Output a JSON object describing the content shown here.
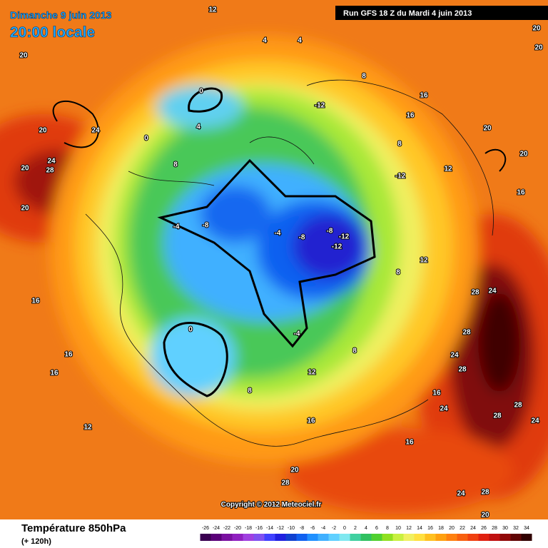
{
  "header": {
    "date": "Dimanche 9 juin 2013",
    "time": "20:00 locale",
    "run": "Run GFS 18 Z du Mardi 4 juin 2013"
  },
  "copyright": "Copyright © 2012 Meteociel.fr",
  "footer": {
    "title": "Température 850hPa",
    "subtitle": "(+ 120h)"
  },
  "scale": {
    "labels": [
      -26,
      -24,
      -22,
      -20,
      -18,
      -16,
      -14,
      -12,
      -10,
      -8,
      -6,
      -4,
      -2,
      0,
      2,
      4,
      6,
      8,
      10,
      12,
      14,
      16,
      18,
      20,
      22,
      24,
      26,
      28,
      30,
      32,
      34
    ],
    "colors": [
      "#3a0050",
      "#5a0078",
      "#7a10a0",
      "#9020c0",
      "#a040e0",
      "#8050f0",
      "#4040ff",
      "#2020e0",
      "#1040d0",
      "#1060f0",
      "#2090ff",
      "#40b0ff",
      "#60d0ff",
      "#80e8f0",
      "#40d0a0",
      "#30c060",
      "#50d030",
      "#90e020",
      "#c8f040",
      "#f0f060",
      "#ffe040",
      "#ffc020",
      "#ffa010",
      "#ff8010",
      "#f86010",
      "#f04010",
      "#e02010",
      "#c01010",
      "#900808",
      "#600404",
      "#300000"
    ]
  },
  "map": {
    "labels": [
      "12",
      "20",
      "20",
      "24",
      "24",
      "28",
      "20",
      "20",
      "16",
      "16",
      "16",
      "12",
      "0",
      "4",
      "0",
      "8",
      "4",
      "4",
      "8",
      "-12",
      "16",
      "16",
      "12",
      "20",
      "20",
      "16",
      "-12",
      "-8",
      "-4",
      "-4",
      "-8",
      "-8",
      "-12",
      "-12",
      "0",
      "-4",
      "12",
      "8",
      "28",
      "24",
      "28",
      "24",
      "28",
      "28",
      "28",
      "24",
      "24",
      "16",
      "16",
      "20",
      "28",
      "24",
      "28",
      "20",
      "20",
      "20",
      "16",
      "8",
      "12",
      "8",
      "8"
    ]
  }
}
